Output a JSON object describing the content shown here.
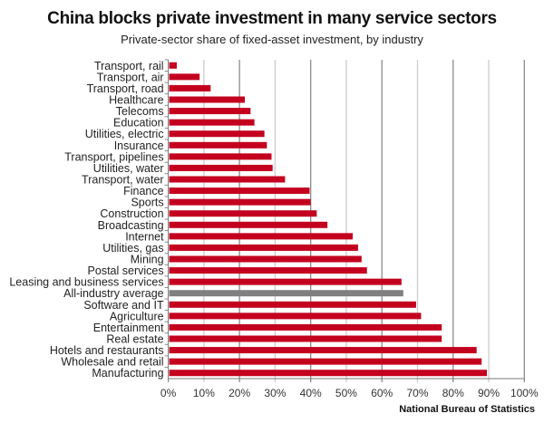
{
  "chart_data": {
    "type": "bar",
    "orientation": "horizontal",
    "title": "China blocks private investment in many service sectors",
    "subtitle": "Private-sector share of fixed-asset investment, by industry",
    "source": "National Bureau of Statistics",
    "xlabel": "",
    "ylabel": "",
    "xlim": [
      0,
      100
    ],
    "x_ticks": [
      "0%",
      "10%",
      "20%",
      "30%",
      "40%",
      "50%",
      "60%",
      "70%",
      "80%",
      "90%",
      "100%"
    ],
    "grid": true,
    "colors": {
      "bar": "#c4001f",
      "highlight": "#808080",
      "grid": "#999999"
    },
    "highlight_category": "All-industry average",
    "categories": [
      "Transport, rail",
      "Transport, air",
      "Transport, road",
      "Healthcare",
      "Telecoms",
      "Education",
      "Utilities, electric",
      "Insurance",
      "Transport, pipelines",
      "Utilities, water",
      "Transport, water",
      "Finance",
      "Sports",
      "Construction",
      "Broadcasting",
      "Internet",
      "Utilities, gas",
      "Mining",
      "Postal services",
      "Leasing and business services",
      "All-industry average",
      "Software and IT",
      "Agriculture",
      "Entertainment",
      "Real estate",
      "Hotels and restaurants",
      "Wholesale and retail",
      "Manufacturing"
    ],
    "values": [
      2.4,
      8.8,
      11.9,
      21.5,
      23.1,
      24.2,
      27.0,
      27.7,
      29.0,
      29.3,
      32.8,
      39.7,
      40.0,
      41.7,
      44.7,
      51.8,
      53.3,
      54.3,
      55.8,
      65.5,
      66.0,
      69.6,
      71.0,
      76.8,
      76.8,
      86.6,
      88.0,
      89.5
    ]
  }
}
